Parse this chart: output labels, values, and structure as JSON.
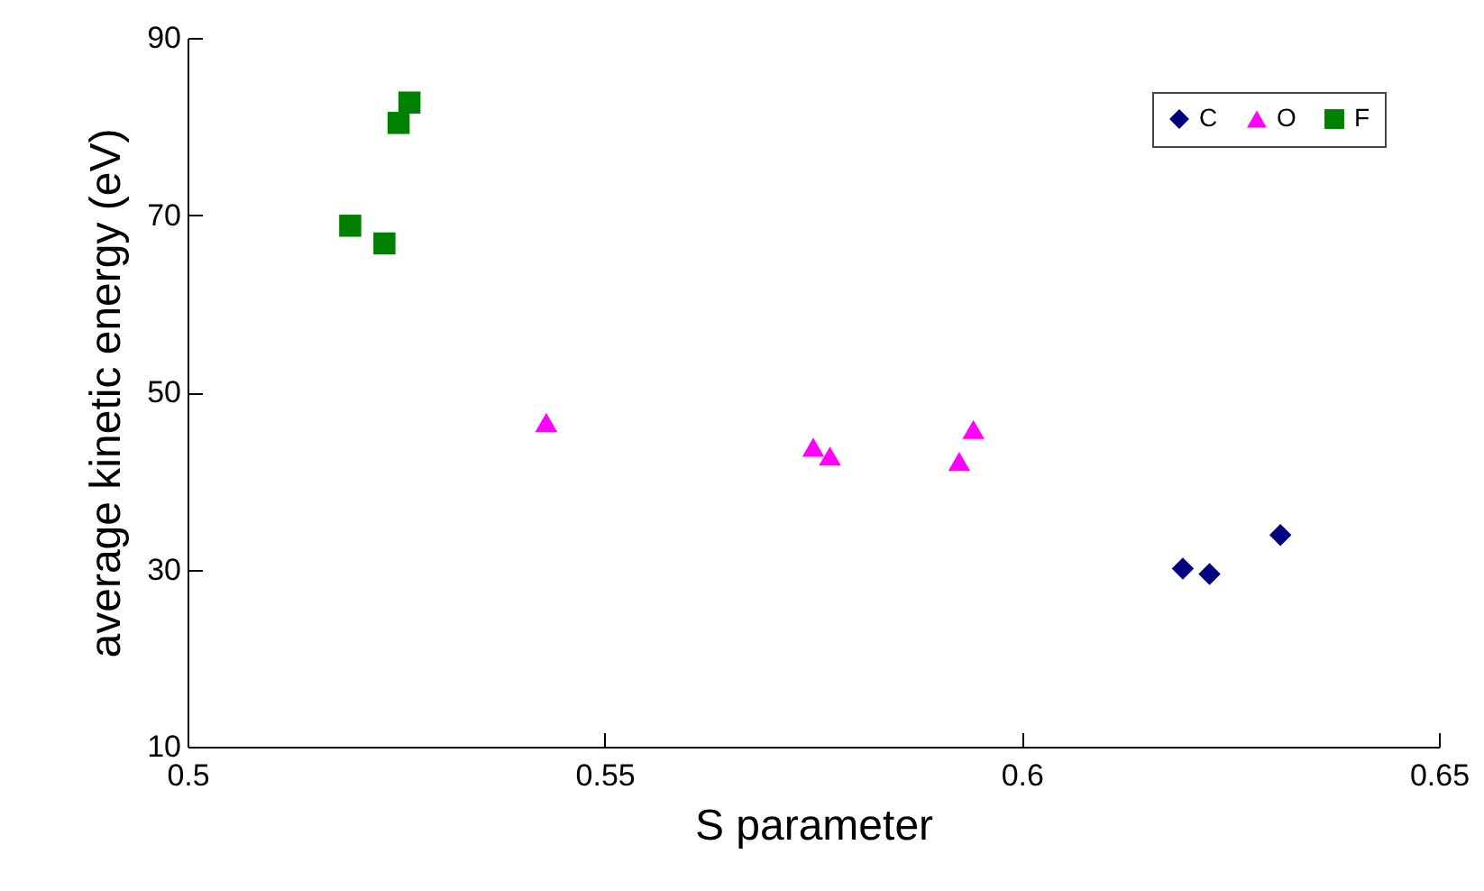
{
  "chart_data": {
    "type": "scatter",
    "xlabel": "S parameter",
    "ylabel": "average kinetic energy (eV)",
    "xlim": [
      0.5,
      0.65
    ],
    "xticks": [
      0.5,
      0.55,
      0.6,
      0.65
    ],
    "ylim": [
      10,
      90
    ],
    "yticks": [
      10,
      30,
      50,
      70,
      90
    ],
    "grid": false,
    "legend": "top right",
    "series": [
      {
        "name": "C",
        "color": "#000080",
        "marker": "diamond",
        "x": [
          0.6193,
          0.6225,
          0.631
        ],
        "values": [
          30.1,
          29.5,
          33.9
        ]
      },
      {
        "name": "O",
        "color": "#ff00ff",
        "marker": "triangle",
        "x": [
          0.543,
          0.575,
          0.577,
          0.5925,
          0.5942
        ],
        "values": [
          46.6,
          43.8,
          42.8,
          42.2,
          45.8
        ]
      },
      {
        "name": "F",
        "color": "#008000",
        "marker": "square",
        "x": [
          0.5195,
          0.5236,
          0.5253,
          0.5266
        ],
        "values": [
          68.8,
          66.8,
          80.4,
          82.7
        ]
      }
    ]
  }
}
